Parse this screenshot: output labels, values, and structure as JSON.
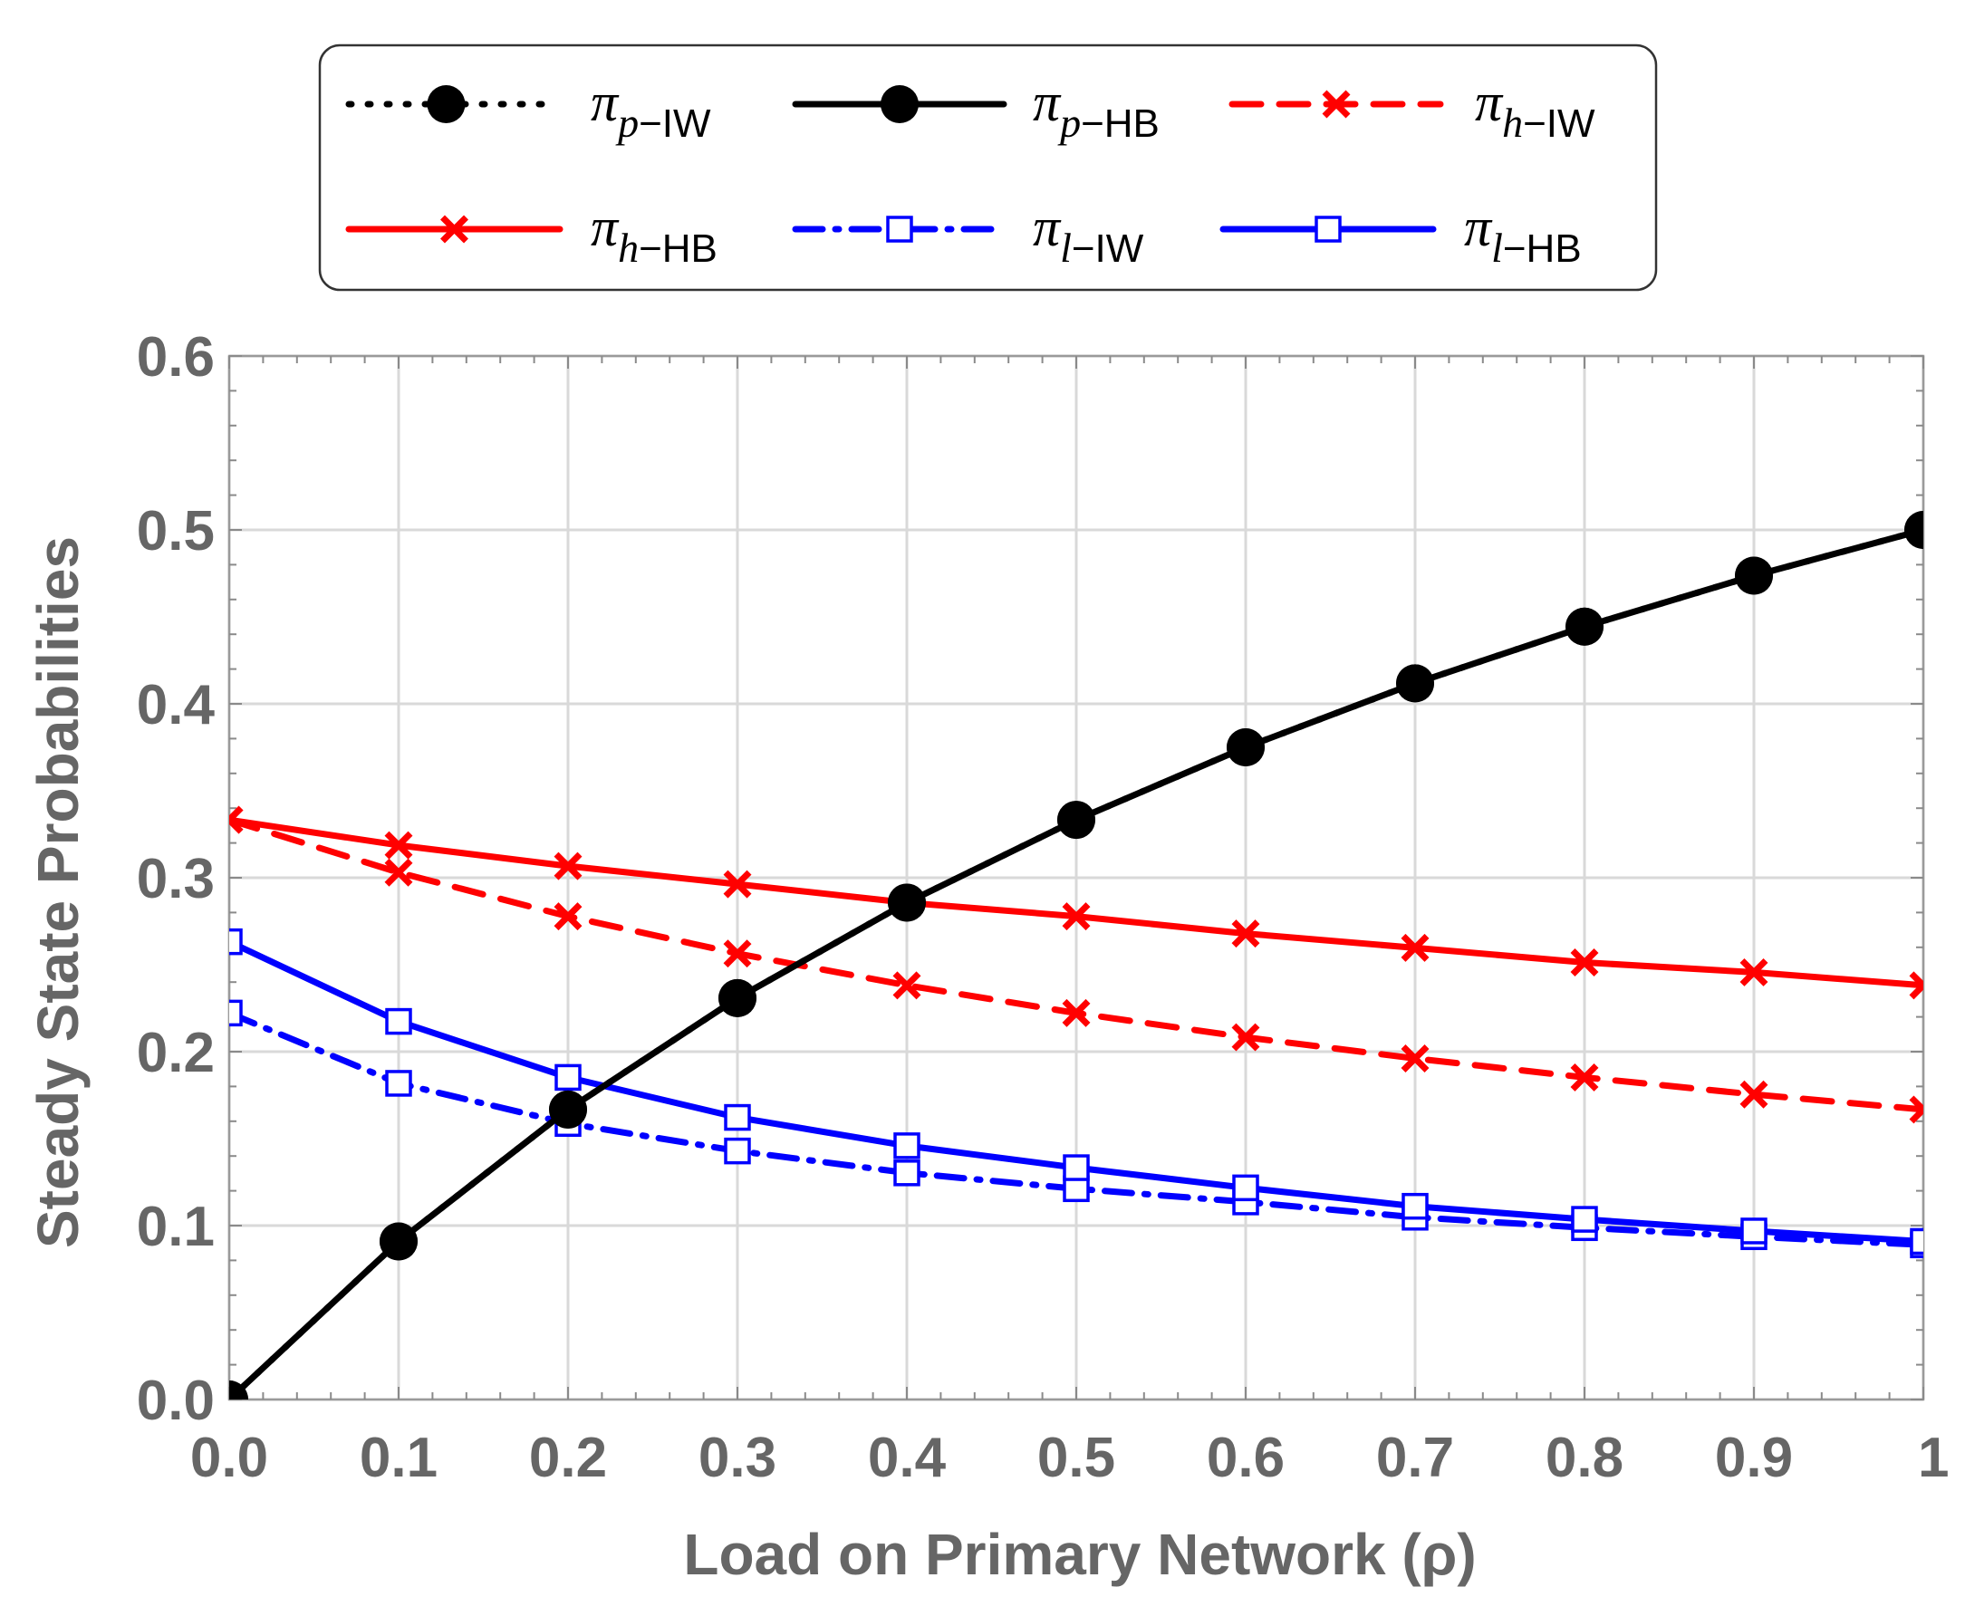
{
  "chart_data": {
    "type": "line",
    "title": "",
    "xlabel": "Load on Primary Network (ρ)",
    "ylabel": "Steady State Probabilities",
    "xlim": [
      0,
      1
    ],
    "ylim": [
      0,
      0.6
    ],
    "grid": true,
    "legend_placement": "top-center",
    "x": [
      0.0,
      0.1,
      0.2,
      0.3,
      0.4,
      0.5,
      0.6,
      0.7,
      0.8,
      0.9,
      1.0
    ],
    "x_tick_labels": [
      "0.0",
      "0.1",
      "0.2",
      "0.3",
      "0.4",
      "0.5",
      "0.6",
      "0.7",
      "0.8",
      "0.9",
      "1"
    ],
    "y_ticks": [
      0.0,
      0.1,
      0.2,
      0.3,
      0.4,
      0.5,
      0.6
    ],
    "y_tick_labels": [
      "0.0",
      "0.1",
      "0.2",
      "0.3",
      "0.4",
      "0.5",
      "0.6"
    ],
    "series": [
      {
        "name": "πp−IW",
        "symbol": "π",
        "sub_var": "p",
        "sub_text": "−IW",
        "color": "#000000",
        "line_style": "dotted",
        "marker": "filled-circle",
        "values": [
          0.0,
          0.0909,
          0.1667,
          0.2308,
          0.2857,
          0.3333,
          0.375,
          0.4118,
          0.4444,
          0.4737,
          0.5
        ]
      },
      {
        "name": "πp−HB",
        "symbol": "π",
        "sub_var": "p",
        "sub_text": "−HB",
        "color": "#000000",
        "line_style": "solid",
        "marker": "filled-circle",
        "values": [
          0.0,
          0.0909,
          0.1667,
          0.2308,
          0.2857,
          0.3333,
          0.375,
          0.4118,
          0.4444,
          0.4737,
          0.5
        ]
      },
      {
        "name": "πh−IW",
        "symbol": "π",
        "sub_var": "h",
        "sub_text": "−IW",
        "color": "#ff0000",
        "line_style": "dashed",
        "marker": "x",
        "values": [
          0.3333,
          0.303,
          0.2778,
          0.2564,
          0.2381,
          0.2222,
          0.2083,
          0.1961,
          0.1852,
          0.1754,
          0.1667
        ]
      },
      {
        "name": "πh−HB",
        "symbol": "π",
        "sub_var": "h",
        "sub_text": "−HB",
        "color": "#ff0000",
        "line_style": "solid",
        "marker": "x",
        "values": [
          0.3333,
          0.3187,
          0.3067,
          0.2963,
          0.2857,
          0.2778,
          0.2679,
          0.2597,
          0.2513,
          0.2456,
          0.2381
        ]
      },
      {
        "name": "πl−IW",
        "symbol": "π",
        "sub_var": "l",
        "sub_text": "−IW",
        "color": "#0000ff",
        "line_style": "dashdot",
        "marker": "open-square",
        "values": [
          0.2222,
          0.1818,
          0.1587,
          0.1429,
          0.1303,
          0.1212,
          0.1136,
          0.1048,
          0.0988,
          0.0936,
          0.0889
        ]
      },
      {
        "name": "πl−HB",
        "symbol": "π",
        "sub_var": "l",
        "sub_text": "−HB",
        "color": "#0000ff",
        "line_style": "solid",
        "marker": "open-square",
        "values": [
          0.2632,
          0.2174,
          0.1852,
          0.1622,
          0.1459,
          0.1333,
          0.1217,
          0.1111,
          0.1036,
          0.0969,
          0.0909
        ]
      }
    ]
  }
}
